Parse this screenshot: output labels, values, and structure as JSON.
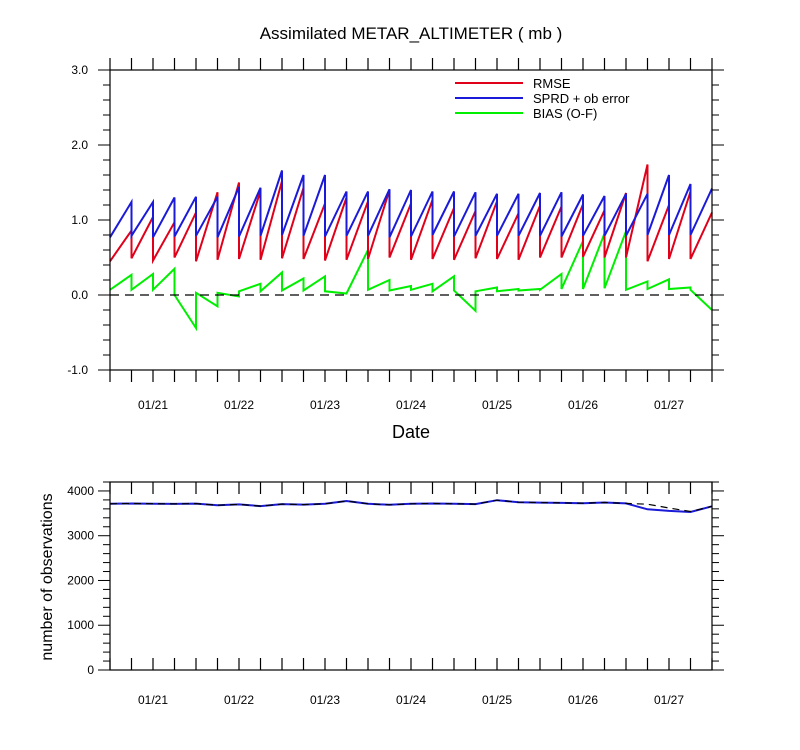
{
  "chart_data": [
    {
      "type": "line",
      "title": "Assimilated METAR_ALTIMETER ( mb )",
      "xlabel": "Date",
      "ylabel": "",
      "ylim": [
        -1.0,
        3.0
      ],
      "yticks": [
        "3.0",
        "2.0",
        "1.0",
        "0.0",
        "-1.0"
      ],
      "xlim": [
        "01/20 12:00",
        "01/27 12:00"
      ],
      "xtick_labels": [
        "01/21",
        "01/22",
        "01/23",
        "01/24",
        "01/25",
        "01/26",
        "01/27"
      ],
      "legend_position": "top-right",
      "reference_line": 0.0,
      "series": [
        {
          "name": "RMSE",
          "color": "#e0001a",
          "cycles": [
            [
              0.45,
              0.86
            ],
            [
              0.49,
              1.04
            ],
            [
              0.46,
              0.97
            ],
            [
              0.5,
              1.1
            ],
            [
              0.45,
              1.37
            ],
            [
              0.47,
              1.5
            ],
            [
              0.48,
              1.39
            ],
            [
              0.47,
              1.52
            ],
            [
              0.49,
              1.43
            ],
            [
              0.48,
              1.22
            ],
            [
              0.46,
              1.3
            ],
            [
              0.47,
              1.25
            ],
            [
              0.48,
              1.4
            ],
            [
              0.5,
              1.22
            ],
            [
              0.47,
              1.27
            ],
            [
              0.48,
              1.16
            ],
            [
              0.47,
              1.12
            ],
            [
              0.49,
              1.25
            ],
            [
              0.48,
              1.09
            ],
            [
              0.47,
              1.19
            ],
            [
              0.5,
              1.18
            ],
            [
              0.5,
              1.21
            ],
            [
              0.51,
              1.13
            ],
            [
              0.5,
              1.36
            ],
            [
              0.5,
              1.74
            ],
            [
              0.45,
              1.2
            ],
            [
              0.48,
              1.38
            ],
            [
              0.48,
              1.1
            ]
          ]
        },
        {
          "name": "SPRD + ob error",
          "color": "#1a1ad8",
          "cycles": [
            [
              0.77,
              1.24
            ],
            [
              0.79,
              1.24
            ],
            [
              0.77,
              1.3
            ],
            [
              0.78,
              1.31
            ],
            [
              0.79,
              1.31
            ],
            [
              0.77,
              1.44
            ],
            [
              0.78,
              1.43
            ],
            [
              0.79,
              1.66
            ],
            [
              0.8,
              1.6
            ],
            [
              0.79,
              1.6
            ],
            [
              0.78,
              1.38
            ],
            [
              0.79,
              1.38
            ],
            [
              0.79,
              1.41
            ],
            [
              0.77,
              1.4
            ],
            [
              0.78,
              1.38
            ],
            [
              0.8,
              1.38
            ],
            [
              0.78,
              1.37
            ],
            [
              0.79,
              1.35
            ],
            [
              0.79,
              1.35
            ],
            [
              0.79,
              1.36
            ],
            [
              0.79,
              1.37
            ],
            [
              0.78,
              1.34
            ],
            [
              0.79,
              1.32
            ],
            [
              0.79,
              1.35
            ],
            [
              0.79,
              1.35
            ],
            [
              0.8,
              1.6
            ],
            [
              0.8,
              1.48
            ],
            [
              0.8,
              1.42
            ]
          ]
        },
        {
          "name": "BIAS (O-F)",
          "color": "#00ee00",
          "cycles": [
            [
              0.07,
              0.27
            ],
            [
              0.07,
              0.28
            ],
            [
              0.07,
              0.35
            ],
            [
              0.0,
              -0.44
            ],
            [
              0.03,
              -0.15
            ],
            [
              0.03,
              -0.02
            ],
            [
              0.05,
              0.15
            ],
            [
              0.05,
              0.3
            ],
            [
              0.06,
              0.22
            ],
            [
              0.06,
              0.25
            ],
            [
              0.05,
              0.02
            ],
            [
              0.02,
              0.6
            ],
            [
              0.07,
              0.2
            ],
            [
              0.06,
              0.12
            ],
            [
              0.07,
              0.15
            ],
            [
              0.05,
              0.25
            ],
            [
              0.06,
              -0.21
            ],
            [
              0.05,
              0.1
            ],
            [
              0.05,
              0.08
            ],
            [
              0.06,
              0.08
            ],
            [
              0.07,
              0.28
            ],
            [
              0.08,
              0.72
            ],
            [
              0.08,
              0.82
            ],
            [
              0.09,
              0.85
            ],
            [
              0.07,
              0.18
            ],
            [
              0.08,
              0.21
            ],
            [
              0.08,
              0.1
            ],
            [
              0.07,
              -0.2
            ]
          ]
        }
      ]
    },
    {
      "type": "line",
      "title": "",
      "xlabel": "",
      "ylabel": "number of observations",
      "ylim": [
        0,
        4200
      ],
      "yticks": [
        "4000",
        "3000",
        "2000",
        "1000",
        "0"
      ],
      "xtick_labels": [
        "01/21",
        "01/22",
        "01/23",
        "01/24",
        "01/25",
        "01/26",
        "01/27"
      ],
      "series": [
        {
          "name": "",
          "color": "#1a1ad8",
          "style": "solid",
          "values": [
            3712,
            3720,
            3716,
            3710,
            3718,
            3682,
            3700,
            3662,
            3706,
            3694,
            3712,
            3775,
            3712,
            3690,
            3714,
            3720,
            3712,
            3706,
            3793,
            3748,
            3740,
            3732,
            3726,
            3741,
            3722,
            3590,
            3555,
            3530,
            3658
          ]
        },
        {
          "name": "",
          "color": "#000000",
          "style": "dashed",
          "values": [
            3712,
            3720,
            3716,
            3710,
            3718,
            3682,
            3700,
            3662,
            3706,
            3694,
            3712,
            3775,
            3712,
            3690,
            3714,
            3720,
            3712,
            3706,
            3793,
            3748,
            3740,
            3732,
            3726,
            3741,
            3722,
            3705,
            3620,
            3540,
            3658
          ]
        }
      ]
    }
  ]
}
